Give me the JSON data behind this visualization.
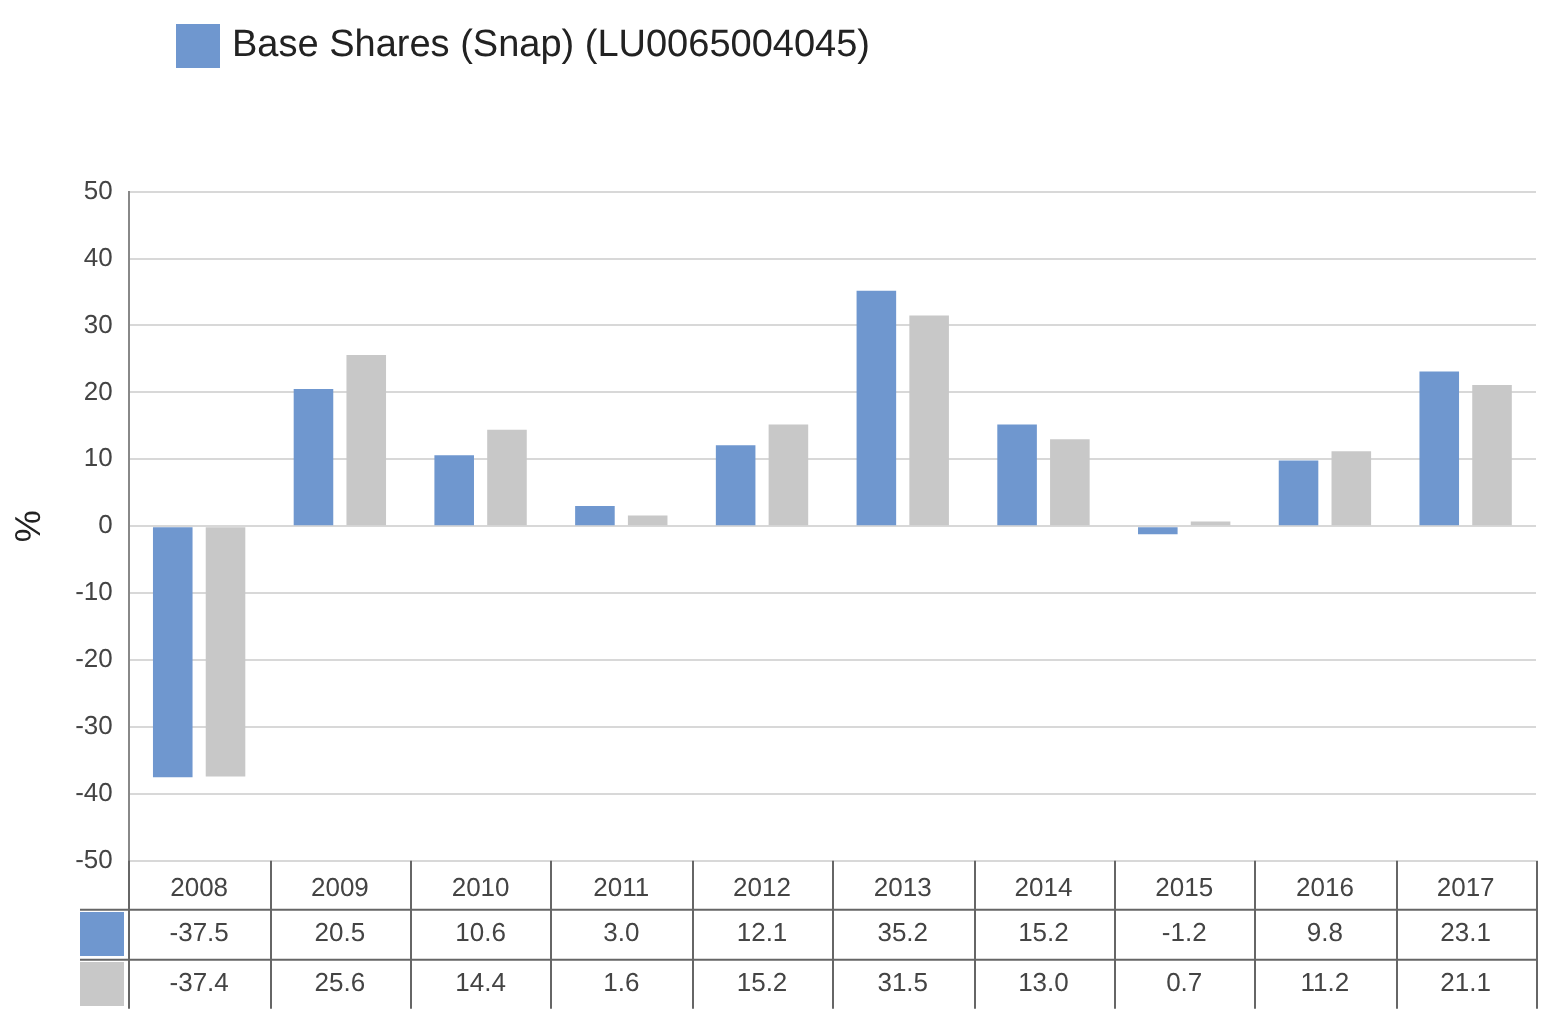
{
  "chart_data": {
    "type": "bar",
    "ylabel": "%",
    "categories": [
      "2008",
      "2009",
      "2010",
      "2011",
      "2012",
      "2013",
      "2014",
      "2015",
      "2016",
      "2017"
    ],
    "series": [
      {
        "name": "Base Shares (Snap) (LU0065004045)",
        "color": "#6f97cf",
        "values": [
          -37.5,
          20.5,
          10.6,
          3.0,
          12.1,
          35.2,
          15.2,
          -1.2,
          9.8,
          23.1
        ],
        "value_labels": [
          "-37.5",
          "20.5",
          "10.6",
          "3.0",
          "12.1",
          "35.2",
          "15.2",
          "-1.2",
          "9.8",
          "23.1"
        ]
      },
      {
        "color": "#c8c8c8",
        "values": [
          -37.4,
          25.6,
          14.4,
          1.6,
          15.2,
          31.5,
          13.0,
          0.7,
          11.2,
          21.1
        ],
        "value_labels": [
          "-37.4",
          "25.6",
          "14.4",
          "1.6",
          "15.2",
          "31.5",
          "13.0",
          "0.7",
          "11.2",
          "21.1"
        ]
      }
    ],
    "ylim": [
      -50,
      50
    ],
    "yticks": [
      -50,
      -40,
      -30,
      -20,
      -10,
      0,
      10,
      20,
      30,
      40,
      50
    ],
    "grid": "y",
    "legend": "top left"
  }
}
